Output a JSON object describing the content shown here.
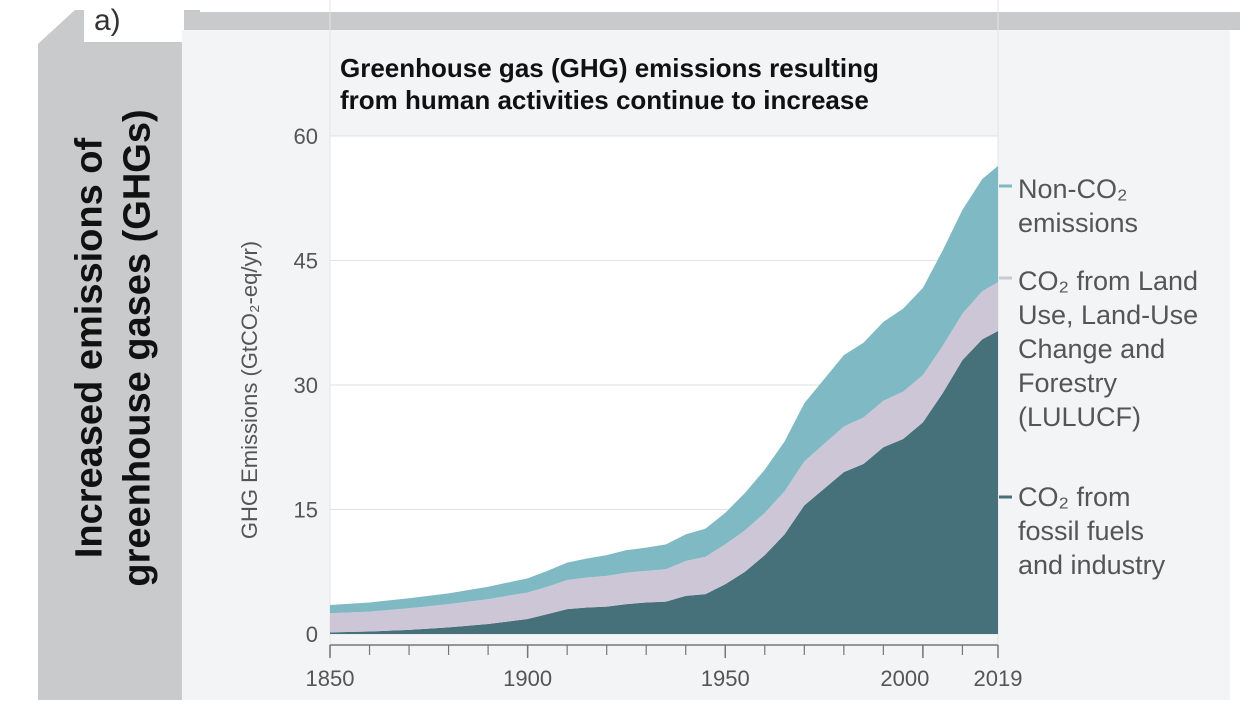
{
  "panel_label": "a)",
  "side_heading_line1": "Increased emissions of",
  "side_heading_line2": "greenhouse gases (GHGs)",
  "colors": {
    "non_co2": "#7fb9c3",
    "lulucf": "#cdc6d6",
    "fossil": "#46707a",
    "panel_bg": "#f3f4f6",
    "side_arrow": "#c9cacb"
  },
  "chart_data": {
    "type": "area",
    "stacked": true,
    "title_line1": "Greenhouse gas (GHG) emissions resulting",
    "title_line2": "from human activities continue to increase",
    "ylabel": "GHG Emissions (GtCO₂-eq/yr)",
    "ylim": [
      0,
      60
    ],
    "xlim": [
      1850,
      2019
    ],
    "yticks": [
      0,
      15,
      30,
      45,
      60
    ],
    "xticks": [
      1850,
      1900,
      1950,
      2000,
      2019
    ],
    "grid": true,
    "legend_placement": "right",
    "x": [
      1850,
      1860,
      1870,
      1880,
      1890,
      1900,
      1905,
      1910,
      1915,
      1920,
      1925,
      1930,
      1935,
      1940,
      1945,
      1950,
      1955,
      1960,
      1965,
      1970,
      1975,
      1980,
      1985,
      1990,
      1995,
      2000,
      2005,
      2010,
      2015,
      2019
    ],
    "series": [
      {
        "name": "CO₂ from fossil fuels and industry",
        "key": "fossil",
        "values": [
          0.2,
          0.3,
          0.5,
          0.8,
          1.2,
          1.8,
          2.4,
          3.0,
          3.2,
          3.3,
          3.6,
          3.8,
          3.9,
          4.6,
          4.8,
          6.0,
          7.5,
          9.5,
          12.0,
          15.5,
          17.5,
          19.5,
          20.5,
          22.5,
          23.5,
          25.5,
          29.0,
          33.0,
          35.5,
          36.5
        ]
      },
      {
        "name": "CO₂ from Land Use, Land-Use Change and Forestry (LULUCF)",
        "key": "lulucf",
        "values": [
          2.3,
          2.4,
          2.6,
          2.8,
          3.0,
          3.2,
          3.3,
          3.5,
          3.6,
          3.7,
          3.8,
          3.8,
          3.9,
          4.2,
          4.5,
          4.8,
          5.0,
          5.1,
          5.2,
          5.3,
          5.4,
          5.5,
          5.6,
          5.6,
          5.7,
          5.7,
          5.7,
          5.6,
          5.8,
          5.9
        ]
      },
      {
        "name": "Non-CO₂ emissions",
        "key": "non_co2",
        "values": [
          1.0,
          1.1,
          1.2,
          1.3,
          1.5,
          1.7,
          1.9,
          2.1,
          2.3,
          2.5,
          2.7,
          2.8,
          3.0,
          3.2,
          3.4,
          3.8,
          4.5,
          5.2,
          6.0,
          7.0,
          7.8,
          8.6,
          9.0,
          9.5,
          10.0,
          10.5,
          11.5,
          12.5,
          13.5,
          14.0
        ]
      }
    ],
    "legend": [
      {
        "key": "non_co2",
        "lines": [
          "Non-CO₂",
          "emissions"
        ]
      },
      {
        "key": "lulucf",
        "lines": [
          "CO₂ from Land",
          "Use, Land-Use",
          "Change and",
          "Forestry",
          "(LULUCF)"
        ]
      },
      {
        "key": "fossil",
        "lines": [
          "CO₂ from",
          "fossil fuels",
          "and industry"
        ]
      }
    ]
  }
}
